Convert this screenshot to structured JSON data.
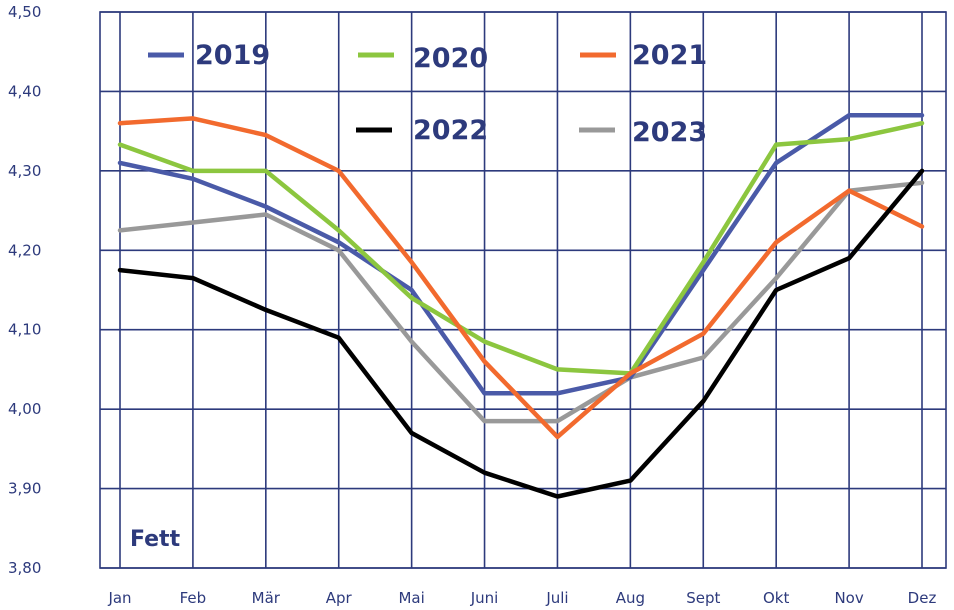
{
  "chart_data": {
    "type": "line",
    "categories": [
      "Jan",
      "Feb",
      "Mär",
      "Apr",
      "Mai",
      "Juni",
      "Juli",
      "Aug",
      "Sept",
      "Okt",
      "Nov",
      "Dez"
    ],
    "ylim": [
      3.8,
      4.5
    ],
    "yticks": [
      "3,80",
      "3,90",
      "4,00",
      "4,10",
      "4,20",
      "4,30",
      "4,40",
      "4,50"
    ],
    "label": "Fett",
    "grid": true,
    "legend_position": "top",
    "series": [
      {
        "name": "2019",
        "color": "#4a5aa8",
        "values": [
          4.31,
          4.29,
          4.255,
          4.21,
          4.15,
          4.02,
          4.02,
          4.04,
          4.175,
          4.31,
          4.37,
          4.37
        ]
      },
      {
        "name": "2020",
        "color": "#8cc63f",
        "values": [
          4.333,
          4.3,
          4.3,
          4.225,
          4.14,
          4.085,
          4.05,
          4.045,
          4.185,
          4.333,
          4.34,
          4.36
        ]
      },
      {
        "name": "2021",
        "color": "#f26a2e",
        "values": [
          4.36,
          4.366,
          4.345,
          4.3,
          4.185,
          4.06,
          3.965,
          4.045,
          4.095,
          4.21,
          4.275,
          4.23
        ]
      },
      {
        "name": "2022",
        "color": "#000000",
        "values": [
          4.175,
          4.165,
          4.125,
          4.09,
          3.97,
          3.92,
          3.89,
          3.91,
          4.01,
          4.15,
          4.19,
          4.3
        ]
      },
      {
        "name": "2023",
        "color": "#999999",
        "values": [
          4.225,
          4.235,
          4.245,
          4.2,
          4.085,
          3.985,
          3.985,
          4.04,
          4.065,
          4.165,
          4.275,
          4.285
        ]
      }
    ]
  }
}
